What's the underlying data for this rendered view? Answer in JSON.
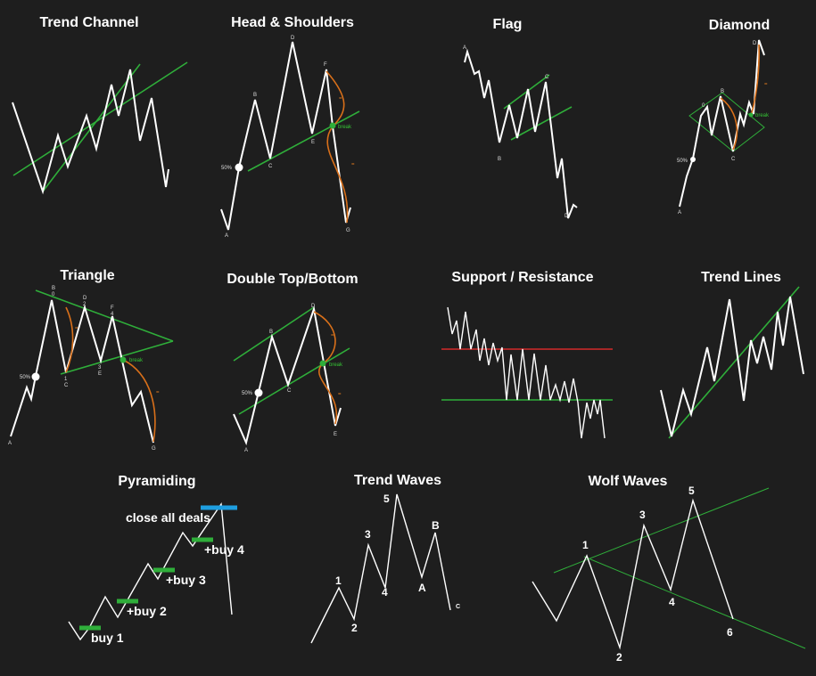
{
  "titles": {
    "trend_channel": "Trend Channel",
    "head_shoulders": "Head & Shoulders",
    "flag": "Flag",
    "diamond": "Diamond",
    "triangle": "Triangle",
    "double_top": "Double Top/Bottom",
    "support_resistance": "Support / Resistance",
    "trend_lines": "Trend Lines",
    "pyramiding": "Pyramiding",
    "trend_waves": "Trend Waves",
    "wolf_waves": "Wolf Waves"
  },
  "labels": {
    "hs": {
      "a": "A",
      "b": "B",
      "c": "C",
      "d": "D",
      "e": "E",
      "f": "F",
      "g": "G",
      "pct": "50%",
      "break": "break"
    },
    "flag": {
      "a": "A",
      "b": "B",
      "c": "C",
      "d": "D"
    },
    "diamond": {
      "a": "A",
      "b": "B",
      "c": "C",
      "d": "D",
      "o": "0",
      "pct": "50%",
      "break": "break"
    },
    "triangle": {
      "a": "A",
      "b": "B",
      "b0": "0",
      "c": "C",
      "c1": "1",
      "d": "D",
      "d2": "2",
      "e": "E",
      "e3": "3",
      "f": "F",
      "f4": "4",
      "g": "G",
      "pct": "50%",
      "break": "break"
    },
    "double_top": {
      "a": "A",
      "b": "B",
      "c": "C",
      "d": "D",
      "e": "E",
      "pct": "50%",
      "break": "break"
    },
    "pyramiding": {
      "buy1": "buy 1",
      "buy2": "+buy 2",
      "buy3": "+buy 3",
      "buy4": "+buy 4",
      "close": "close all deals"
    },
    "trend_waves": {
      "w1": "1",
      "w2": "2",
      "w3": "3",
      "w4": "4",
      "w5": "5",
      "wa": "A",
      "wb": "B",
      "wc": "C"
    },
    "wolf_waves": {
      "w1": "1",
      "w2": "2",
      "w3": "3",
      "w4": "4",
      "w5": "5",
      "w6": "6"
    }
  },
  "colors": {
    "background": "#1e1e1e",
    "price": "#ffffff",
    "trendline": "#2fae3a",
    "projection": "#d9701a",
    "resistance": "#d42a2a",
    "support": "#2fae3a",
    "buy_marker": "#2fae3a",
    "close_marker": "#1e9ee0"
  }
}
